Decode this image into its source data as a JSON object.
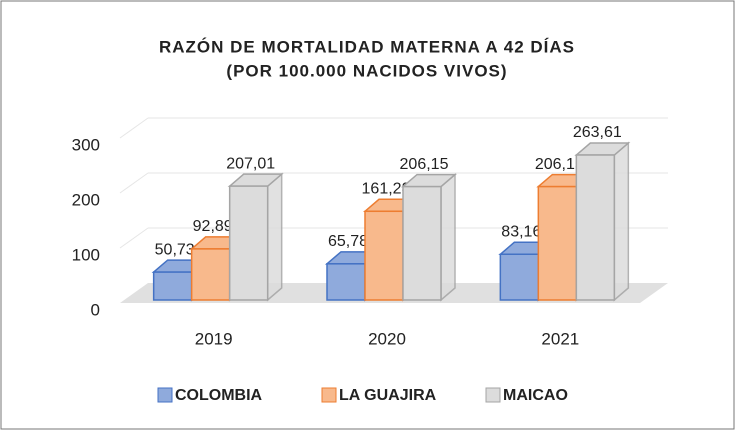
{
  "chart_data": {
    "type": "bar3d",
    "title": "RAZÓN DE MORTALIDAD MATERNA A 42 DÍAS",
    "subtitle": "(POR 100.000 NACIDOS VIVOS)",
    "categories": [
      "2019",
      "2020",
      "2021"
    ],
    "series": [
      {
        "name": "COLOMBIA",
        "color": "#8faadc",
        "edge": "#4472c4",
        "values": [
          50.73,
          65.78,
          83.16
        ],
        "value_labels": [
          "50,73",
          "65,78",
          "83,16"
        ]
      },
      {
        "name": "LA GUAJIRA",
        "color": "#f8b98c",
        "edge": "#ed7d31",
        "values": [
          92.89,
          161.28,
          206.15
        ],
        "value_labels": [
          "92,89",
          "161,28",
          "206,15"
        ]
      },
      {
        "name": "MAICAO",
        "color": "#dcdcdc",
        "edge": "#a5a5a5",
        "values": [
          207.01,
          206.15,
          263.61
        ],
        "value_labels": [
          "207,01",
          "206,15",
          "263,61"
        ]
      }
    ],
    "ylim": [
      0,
      300
    ],
    "yticks": [
      0,
      100,
      200,
      300
    ],
    "grid": true,
    "legend": "bottom"
  }
}
